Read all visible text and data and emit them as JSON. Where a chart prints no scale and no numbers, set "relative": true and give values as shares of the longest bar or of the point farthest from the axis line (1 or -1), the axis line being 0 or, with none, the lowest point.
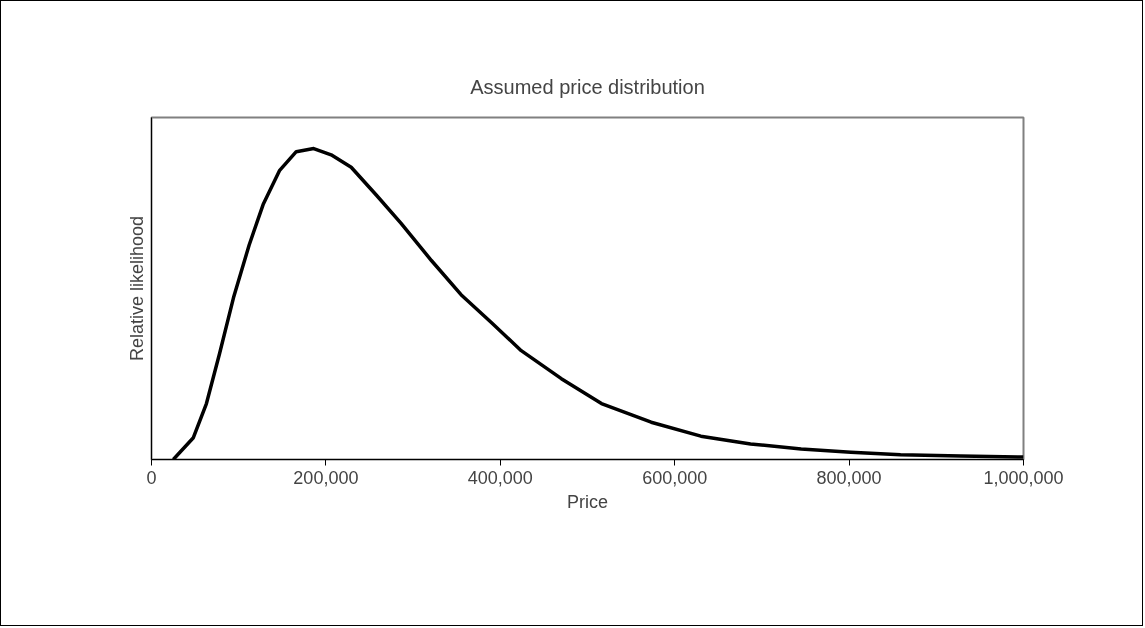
{
  "chart_data": {
    "type": "line",
    "title": "Assumed price distribution",
    "xlabel": "Price",
    "ylabel": "Relative likelihood",
    "relative": true,
    "grid": false,
    "marker": "none",
    "line_style": "solid",
    "xlim": [
      0,
      1000000
    ],
    "xticks": [
      0,
      {
        "value": 200000,
        "label": "200,000"
      },
      {
        "value": 400000,
        "label": "400,000"
      },
      {
        "value": 600000,
        "label": "600,000"
      },
      {
        "value": 800000,
        "label": "800,000"
      },
      {
        "value": 1000000,
        "label": "1,000,000"
      }
    ],
    "series": [
      {
        "color": "#000000",
        "x": [
          25000,
          48000,
          63000,
          78000,
          94000,
          112000,
          128000,
          147000,
          166000,
          186000,
          206000,
          229000,
          258000,
          286000,
          321000,
          355000,
          390000,
          424000,
          470000,
          516000,
          573000,
          630000,
          687000,
          745000,
          802000,
          859000,
          928000,
          1000000
        ],
        "values": [
          0.0,
          0.07,
          0.18,
          0.34,
          0.52,
          0.69,
          0.82,
          0.93,
          0.99,
          1.0,
          0.98,
          0.94,
          0.85,
          0.76,
          0.64,
          0.53,
          0.44,
          0.35,
          0.26,
          0.18,
          0.12,
          0.075,
          0.05,
          0.034,
          0.023,
          0.015,
          0.011,
          0.008
        ]
      }
    ]
  }
}
